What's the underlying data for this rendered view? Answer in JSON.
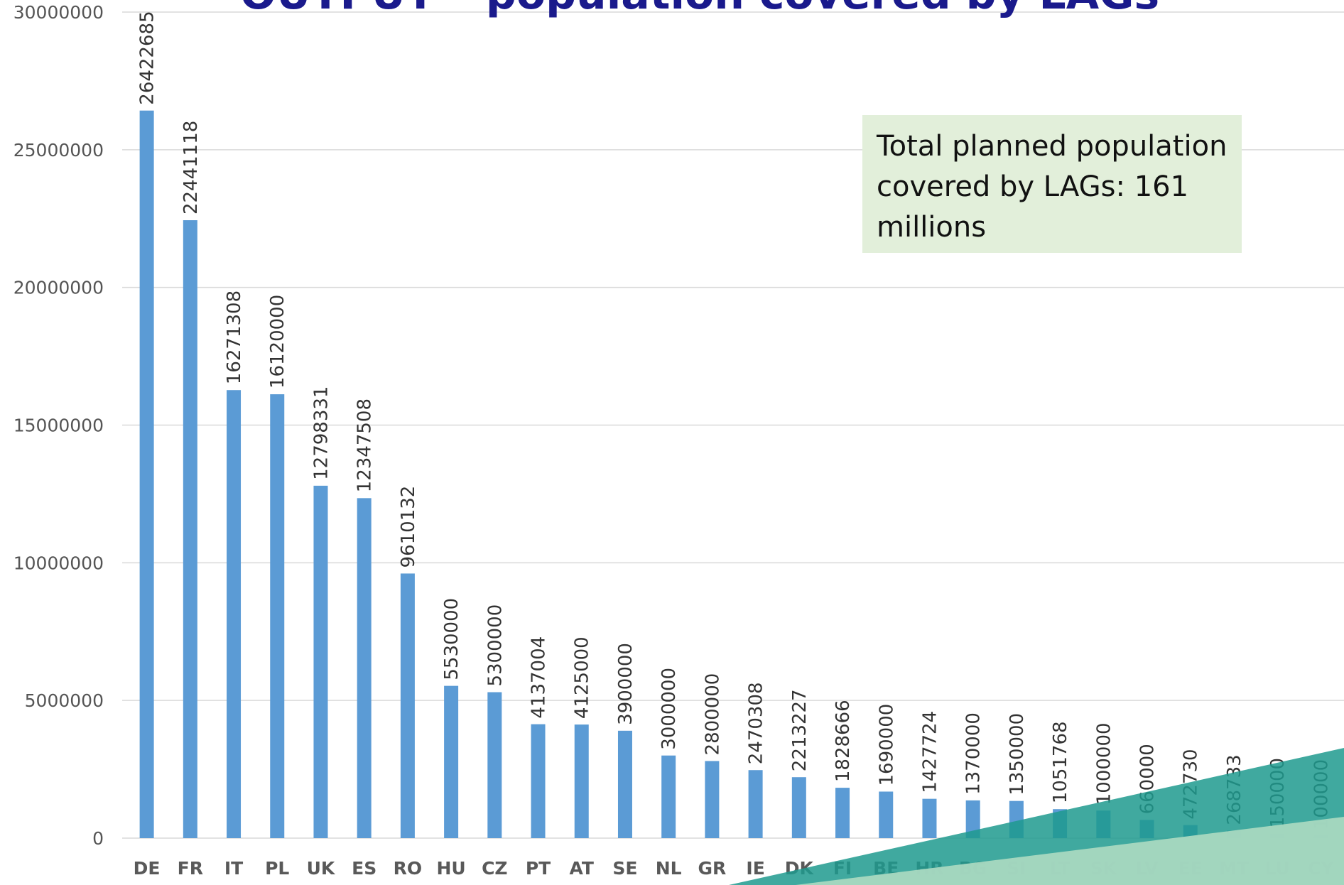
{
  "chart_data": {
    "type": "bar",
    "title": "OUTPUT – population covered by LAGs",
    "categories": [
      "DE",
      "FR",
      "IT",
      "PL",
      "UK",
      "ES",
      "RO",
      "HU",
      "CZ",
      "PT",
      "AT",
      "SE",
      "NL",
      "GR",
      "IE",
      "DK",
      "FI",
      "BE",
      "HR",
      "BG",
      "SI",
      "LT",
      "SK",
      "LV",
      "EE",
      "MT",
      "LU",
      "CY"
    ],
    "values": [
      26422685,
      22441118,
      16271308,
      16120000,
      12798331,
      12347508,
      9610132,
      5530000,
      5300000,
      4137004,
      4125000,
      3900000,
      3000000,
      2800000,
      2470308,
      2213227,
      1828666,
      1690000,
      1427724,
      1370000,
      1350000,
      1051768,
      1000000,
      660000,
      472730,
      268733,
      150000,
      100000
    ],
    "color": "#5b9bd5",
    "ylim": [
      0,
      30000000
    ],
    "yticks": [
      0,
      5000000,
      10000000,
      15000000,
      20000000,
      25000000,
      30000000
    ],
    "grid": true,
    "annotation": "Total planned population covered by LAGs: 161 millions"
  }
}
